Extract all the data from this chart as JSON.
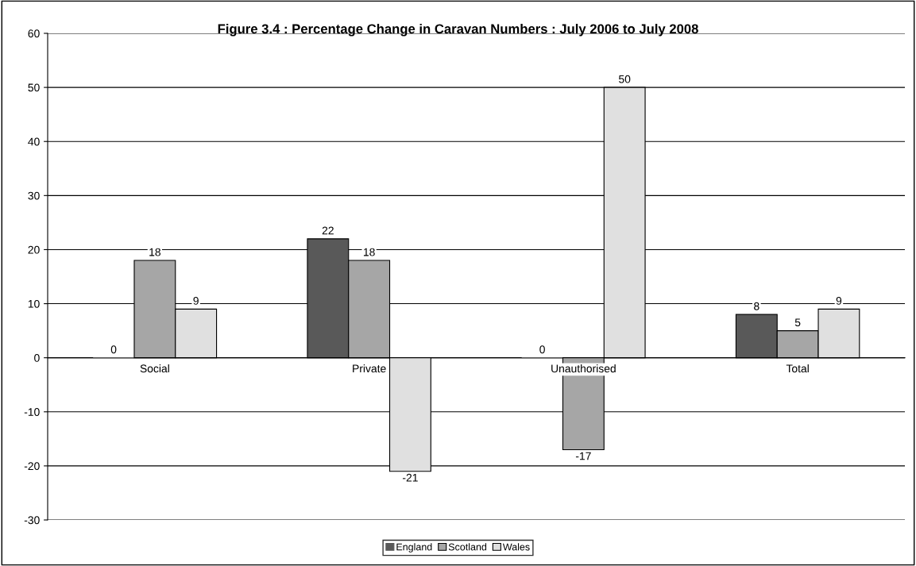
{
  "chart_data": {
    "type": "bar",
    "title": "Figure 3.4 : Percentage Change in Caravan Numbers : July 2006 to July 2008",
    "categories": [
      "Social",
      "Private",
      "Unauthorised",
      "Total"
    ],
    "series": [
      {
        "name": "England",
        "color": "#595959",
        "values": [
          0,
          22,
          0,
          8
        ]
      },
      {
        "name": "Scotland",
        "color": "#a6a6a6",
        "values": [
          18,
          18,
          -17,
          5
        ]
      },
      {
        "name": "Wales",
        "color": "#e0e0e0",
        "values": [
          9,
          -21,
          50,
          9
        ]
      }
    ],
    "ylim": [
      -30,
      60
    ],
    "yticks": [
      -30,
      -20,
      -10,
      0,
      10,
      20,
      30,
      40,
      50,
      60
    ],
    "grid": "y",
    "legend": "bottom",
    "data_labels": true
  }
}
